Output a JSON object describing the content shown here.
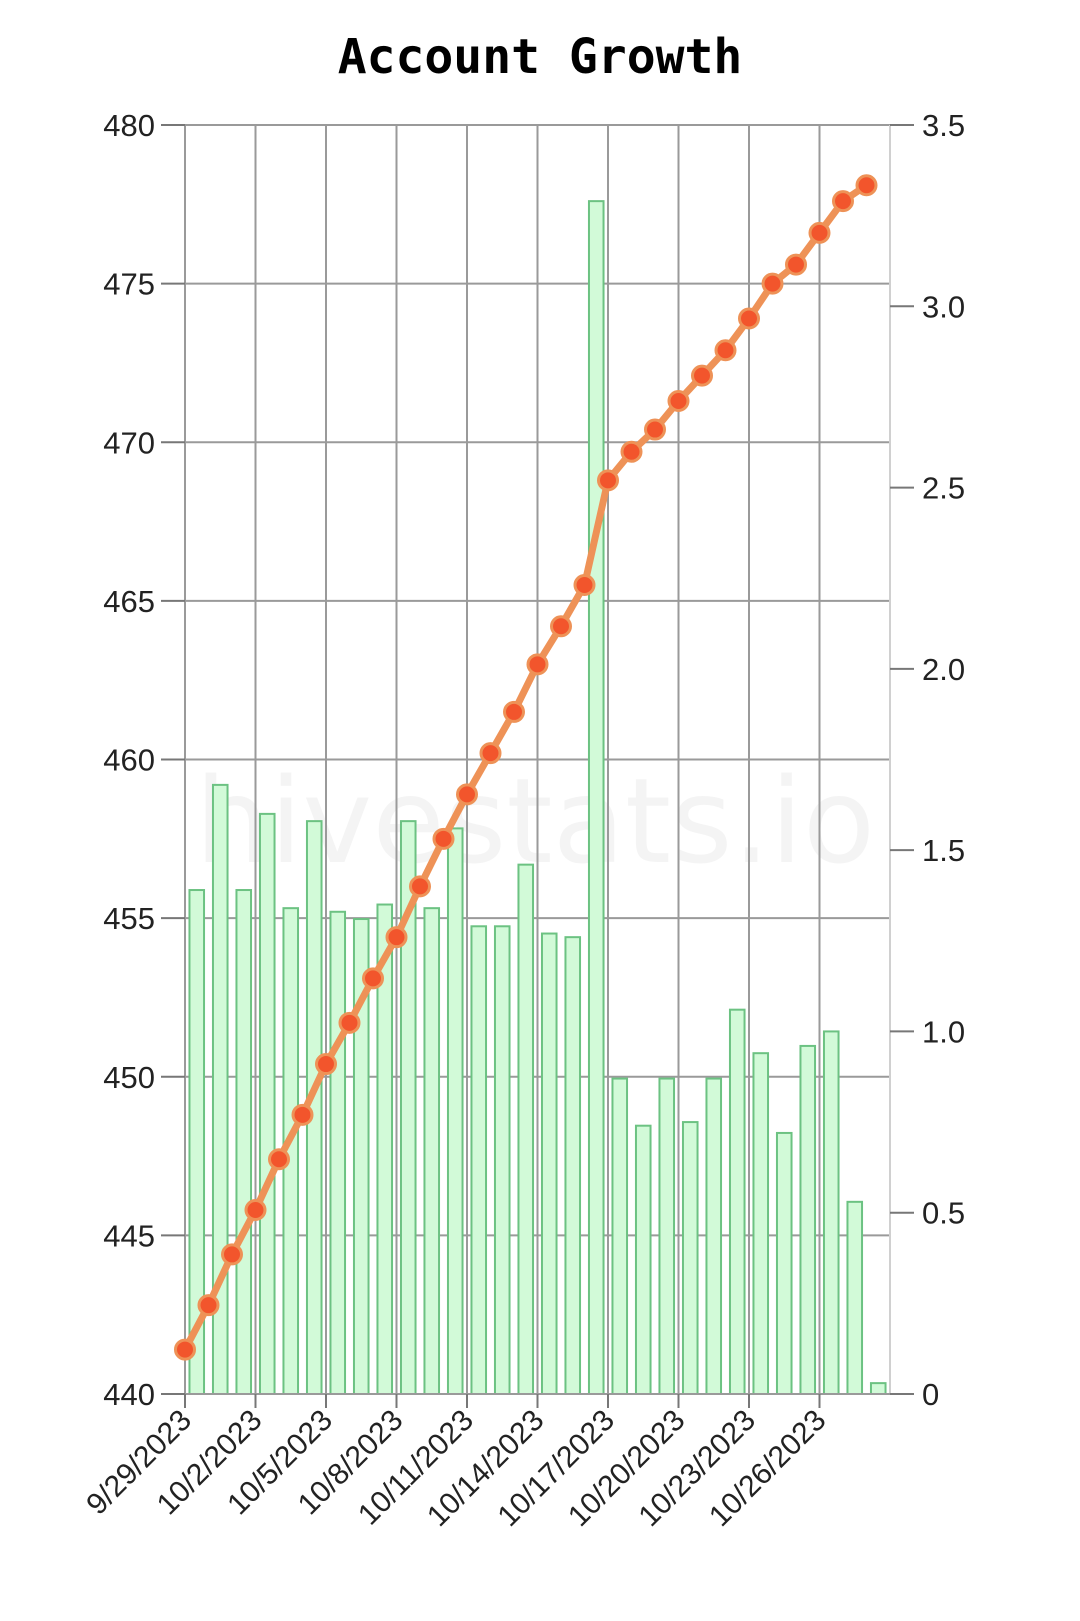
{
  "watermark": "hivestats.io",
  "chart_data": {
    "type": "bar",
    "title": "Account Growth",
    "x": [
      "9/29/2023",
      "9/30/2023",
      "10/1/2023",
      "10/2/2023",
      "10/3/2023",
      "10/4/2023",
      "10/5/2023",
      "10/6/2023",
      "10/7/2023",
      "10/8/2023",
      "10/9/2023",
      "10/10/2023",
      "10/11/2023",
      "10/12/2023",
      "10/13/2023",
      "10/14/2023",
      "10/15/2023",
      "10/16/2023",
      "10/17/2023",
      "10/18/2023",
      "10/19/2023",
      "10/20/2023",
      "10/21/2023",
      "10/22/2023",
      "10/23/2023",
      "10/24/2023",
      "10/25/2023",
      "10/26/2023",
      "10/27/2023",
      "10/28/2023"
    ],
    "x_tick_labels": [
      "9/29/2023",
      "10/2/2023",
      "10/5/2023",
      "10/8/2023",
      "10/11/2023",
      "10/14/2023",
      "10/17/2023",
      "10/20/2023",
      "10/23/2023",
      "10/26/2023"
    ],
    "series": [
      {
        "type": "bar",
        "axis": "right",
        "color": "#d2fad8",
        "stroke": "#6cc282",
        "values": [
          1.39,
          1.68,
          1.39,
          1.6,
          1.34,
          1.58,
          1.33,
          1.31,
          1.35,
          1.58,
          1.34,
          1.56,
          1.29,
          1.29,
          1.46,
          1.27,
          1.26,
          3.29,
          0.87,
          0.74,
          0.87,
          0.75,
          0.87,
          1.06,
          0.94,
          0.72,
          0.96,
          1.0,
          0.53,
          0.03
        ]
      },
      {
        "type": "line",
        "axis": "left",
        "color": "#ee9257",
        "marker_color": "#f2552c",
        "values": [
          441.4,
          442.8,
          444.4,
          445.8,
          447.4,
          448.8,
          450.4,
          451.7,
          453.1,
          454.4,
          456.0,
          457.5,
          458.9,
          460.2,
          461.5,
          463.0,
          464.2,
          465.5,
          468.8,
          469.7,
          470.4,
          471.3,
          472.1,
          472.9,
          473.9,
          475.0,
          475.6,
          476.6,
          477.6,
          478.1
        ]
      }
    ],
    "y_left": {
      "ylim": [
        440,
        480
      ],
      "ticks": [
        "440",
        "445",
        "450",
        "455",
        "460",
        "465",
        "470",
        "475",
        "480"
      ]
    },
    "y_right": {
      "ylim": [
        0,
        3.5
      ],
      "ticks": [
        "0",
        "0.5",
        "1.0",
        "1.5",
        "2.0",
        "2.5",
        "3.0",
        "3.5"
      ]
    },
    "grid": true
  }
}
